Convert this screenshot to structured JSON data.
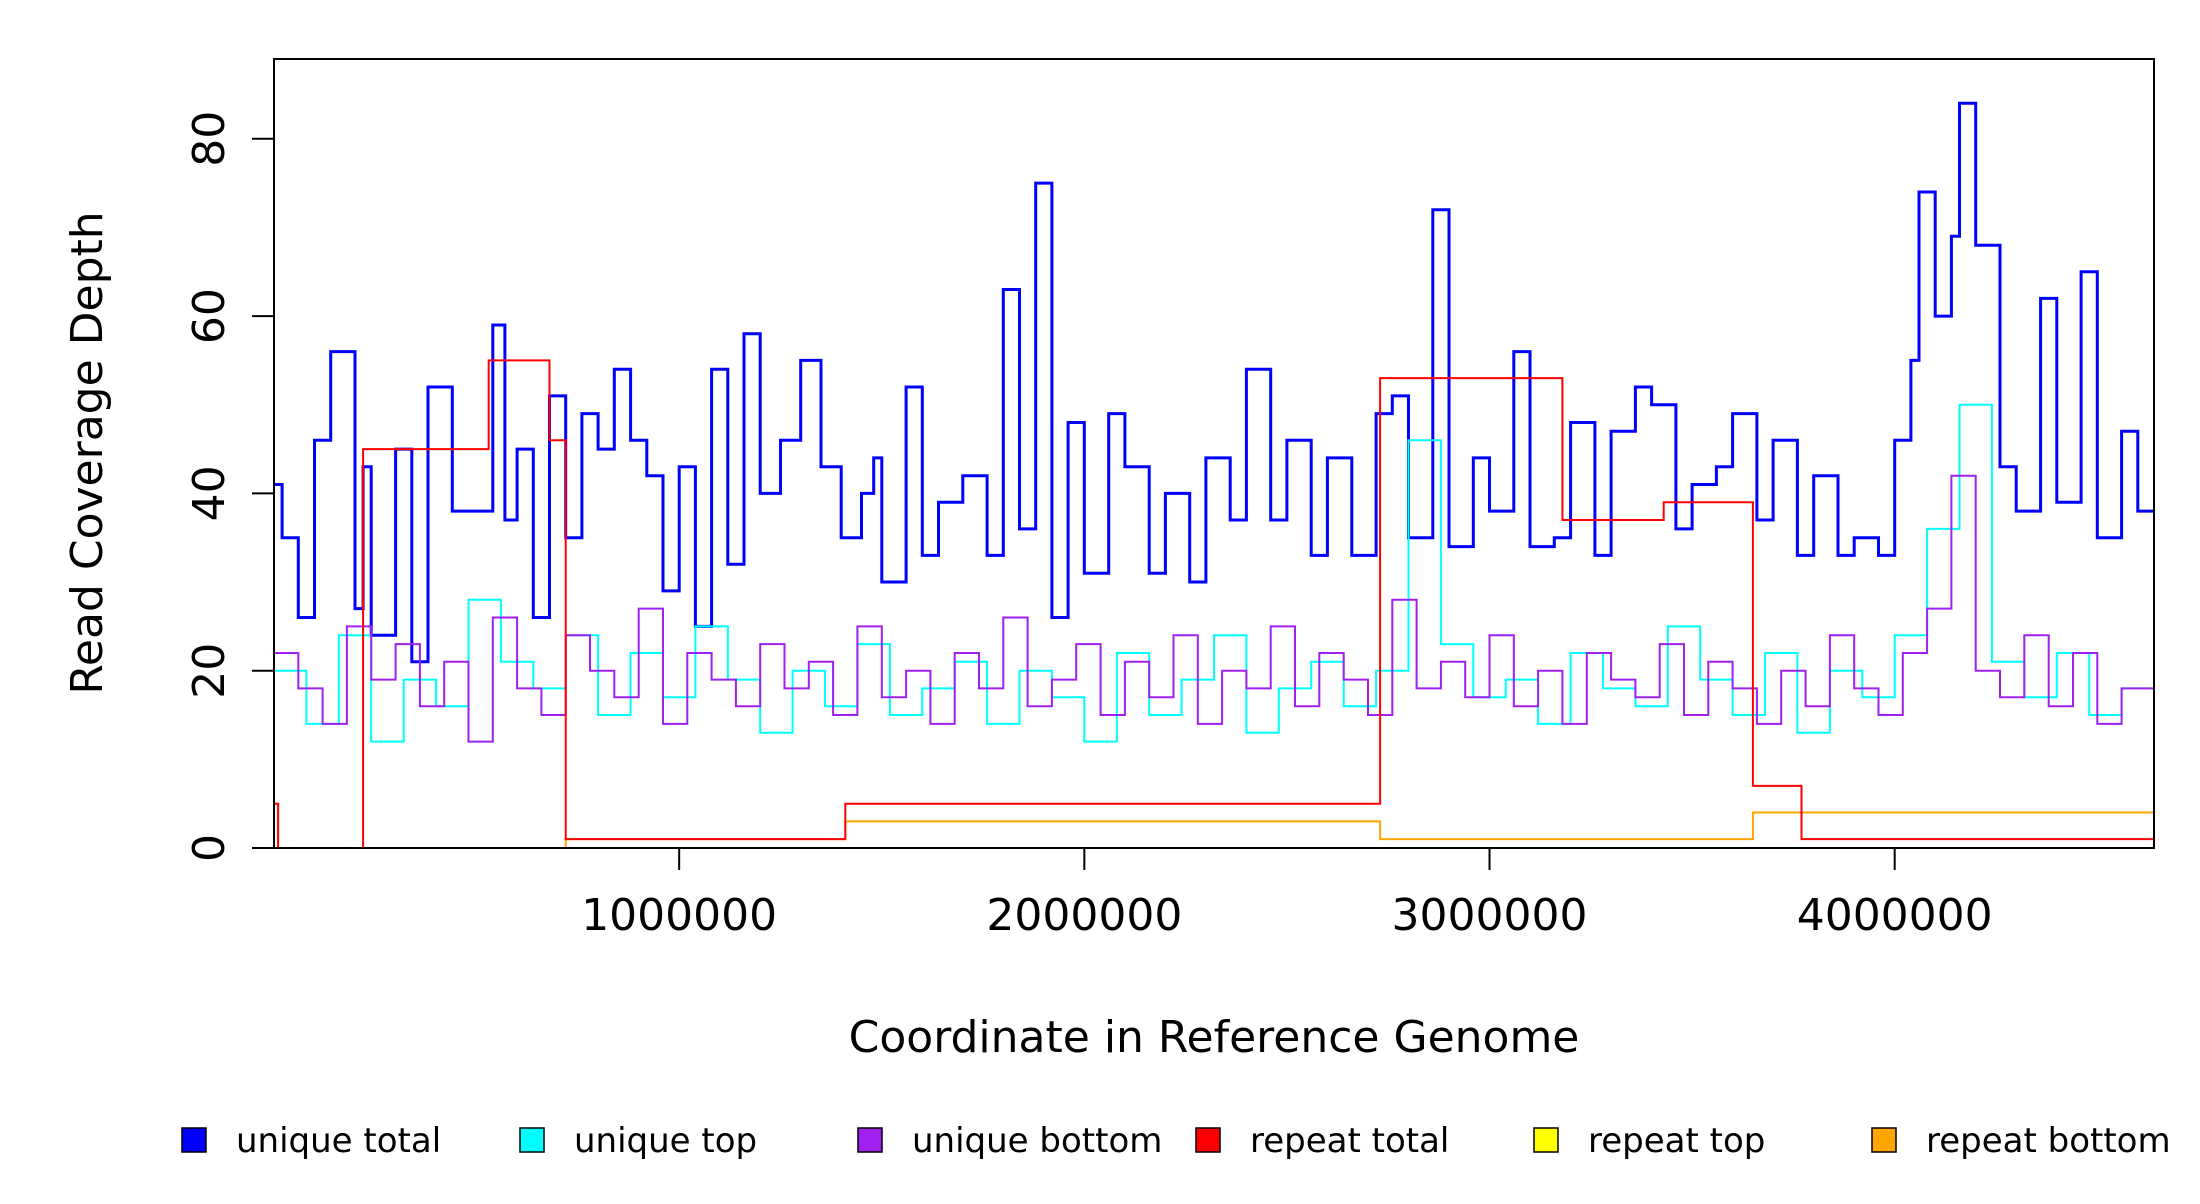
{
  "chart_data": {
    "type": "line",
    "style": "step",
    "xlabel": "Coordinate in Reference Genome",
    "ylabel": "Read Coverage Depth",
    "xlim": [
      0,
      4640000
    ],
    "ylim": [
      0,
      89
    ],
    "x_ticks": [
      1000000,
      2000000,
      3000000,
      4000000
    ],
    "x_tick_labels": [
      "1000000",
      "2000000",
      "3000000",
      "4000000"
    ],
    "y_ticks": [
      0,
      20,
      40,
      60,
      80
    ],
    "y_tick_labels": [
      "0",
      "20",
      "40",
      "60",
      "80"
    ],
    "grid": false,
    "legend_position": "bottom",
    "series": [
      {
        "name": "unique total",
        "color": "#0000ff",
        "x": [
          0,
          20000,
          60000,
          100000,
          140000,
          200000,
          220000,
          240000,
          300000,
          340000,
          380000,
          440000,
          500000,
          540000,
          570000,
          600000,
          640000,
          680000,
          720000,
          760000,
          800000,
          840000,
          880000,
          920000,
          960000,
          1000000,
          1040000,
          1080000,
          1120000,
          1160000,
          1200000,
          1250000,
          1300000,
          1350000,
          1400000,
          1450000,
          1480000,
          1500000,
          1560000,
          1600000,
          1640000,
          1700000,
          1760000,
          1800000,
          1840000,
          1880000,
          1920000,
          1960000,
          2000000,
          2060000,
          2100000,
          2160000,
          2200000,
          2260000,
          2300000,
          2360000,
          2400000,
          2460000,
          2500000,
          2560000,
          2600000,
          2660000,
          2720000,
          2760000,
          2800000,
          2860000,
          2900000,
          2960000,
          3000000,
          3060000,
          3100000,
          3160000,
          3200000,
          3260000,
          3300000,
          3360000,
          3400000,
          3460000,
          3500000,
          3560000,
          3600000,
          3660000,
          3700000,
          3760000,
          3800000,
          3860000,
          3900000,
          3960000,
          4000000,
          4040000,
          4060000,
          4100000,
          4140000,
          4160000,
          4200000,
          4260000,
          4300000,
          4360000,
          4400000,
          4460000,
          4500000,
          4560000,
          4600000,
          4640000
        ],
        "values": [
          41,
          35,
          26,
          46,
          56,
          27,
          43,
          24,
          45,
          21,
          52,
          38,
          38,
          59,
          37,
          45,
          26,
          51,
          35,
          49,
          45,
          54,
          46,
          42,
          29,
          43,
          25,
          54,
          32,
          58,
          40,
          46,
          55,
          43,
          35,
          40,
          44,
          30,
          52,
          33,
          39,
          42,
          33,
          63,
          36,
          75,
          26,
          48,
          31,
          49,
          43,
          31,
          40,
          30,
          44,
          37,
          54,
          37,
          46,
          33,
          44,
          33,
          49,
          51,
          35,
          72,
          34,
          44,
          38,
          56,
          34,
          35,
          48,
          33,
          47,
          52,
          50,
          36,
          41,
          43,
          49,
          37,
          46,
          33,
          42,
          33,
          35,
          33,
          46,
          55,
          74,
          60,
          69,
          84,
          68,
          43,
          38,
          62,
          39,
          65,
          35,
          47,
          38,
          38
        ]
      },
      {
        "name": "unique top",
        "color": "#00ffff",
        "x": [
          0,
          80000,
          160000,
          240000,
          320000,
          400000,
          480000,
          560000,
          640000,
          720000,
          800000,
          880000,
          960000,
          1040000,
          1120000,
          1200000,
          1280000,
          1360000,
          1440000,
          1520000,
          1600000,
          1680000,
          1760000,
          1840000,
          1920000,
          2000000,
          2080000,
          2160000,
          2240000,
          2320000,
          2400000,
          2480000,
          2560000,
          2640000,
          2720000,
          2800000,
          2880000,
          2960000,
          3040000,
          3120000,
          3200000,
          3280000,
          3360000,
          3440000,
          3520000,
          3600000,
          3680000,
          3760000,
          3840000,
          3920000,
          4000000,
          4080000,
          4160000,
          4240000,
          4320000,
          4400000,
          4480000,
          4560000,
          4640000
        ],
        "values": [
          20,
          14,
          24,
          12,
          19,
          16,
          28,
          21,
          18,
          24,
          15,
          22,
          17,
          25,
          19,
          13,
          20,
          16,
          23,
          15,
          18,
          21,
          14,
          20,
          17,
          12,
          22,
          15,
          19,
          24,
          13,
          18,
          21,
          16,
          20,
          46,
          23,
          17,
          19,
          14,
          22,
          18,
          16,
          25,
          19,
          15,
          22,
          13,
          20,
          17,
          24,
          36,
          50,
          21,
          17,
          22,
          15,
          18,
          18
        ]
      },
      {
        "name": "unique bottom",
        "color": "#a020f0",
        "x": [
          0,
          60000,
          120000,
          180000,
          240000,
          300000,
          360000,
          420000,
          480000,
          540000,
          600000,
          660000,
          720000,
          780000,
          840000,
          900000,
          960000,
          1020000,
          1080000,
          1140000,
          1200000,
          1260000,
          1320000,
          1380000,
          1440000,
          1500000,
          1560000,
          1620000,
          1680000,
          1740000,
          1800000,
          1860000,
          1920000,
          1980000,
          2040000,
          2100000,
          2160000,
          2220000,
          2280000,
          2340000,
          2400000,
          2460000,
          2520000,
          2580000,
          2640000,
          2700000,
          2760000,
          2820000,
          2880000,
          2940000,
          3000000,
          3060000,
          3120000,
          3180000,
          3240000,
          3300000,
          3360000,
          3420000,
          3480000,
          3540000,
          3600000,
          3660000,
          3720000,
          3780000,
          3840000,
          3900000,
          3960000,
          4020000,
          4080000,
          4140000,
          4200000,
          4260000,
          4320000,
          4380000,
          4440000,
          4500000,
          4560000,
          4640000
        ],
        "values": [
          22,
          18,
          14,
          25,
          19,
          23,
          16,
          21,
          12,
          26,
          18,
          15,
          24,
          20,
          17,
          27,
          14,
          22,
          19,
          16,
          23,
          18,
          21,
          15,
          25,
          17,
          20,
          14,
          22,
          18,
          26,
          16,
          19,
          23,
          15,
          21,
          17,
          24,
          14,
          20,
          18,
          25,
          16,
          22,
          19,
          15,
          28,
          18,
          21,
          17,
          24,
          16,
          20,
          14,
          22,
          19,
          17,
          23,
          15,
          21,
          18,
          14,
          20,
          16,
          24,
          18,
          15,
          22,
          27,
          42,
          20,
          17,
          24,
          16,
          22,
          14,
          18,
          13
        ]
      },
      {
        "name": "repeat total",
        "color": "#ff0000",
        "x": [
          0,
          10000,
          220000,
          530000,
          680000,
          720000,
          1410000,
          2730000,
          3180000,
          3430000,
          3650000,
          3770000,
          4640000
        ],
        "values": [
          5,
          0,
          45,
          55,
          46,
          1,
          5,
          53,
          37,
          39,
          7,
          1,
          0
        ]
      },
      {
        "name": "repeat top",
        "color": "#ffff00",
        "x": [
          0,
          4640000
        ],
        "values": [
          0,
          0
        ]
      },
      {
        "name": "repeat bottom",
        "color": "#ffa500",
        "x": [
          0,
          10000,
          720000,
          1410000,
          2730000,
          3650000,
          4640000
        ],
        "values": [
          5,
          0,
          1,
          3,
          1,
          4,
          0
        ]
      }
    ]
  }
}
